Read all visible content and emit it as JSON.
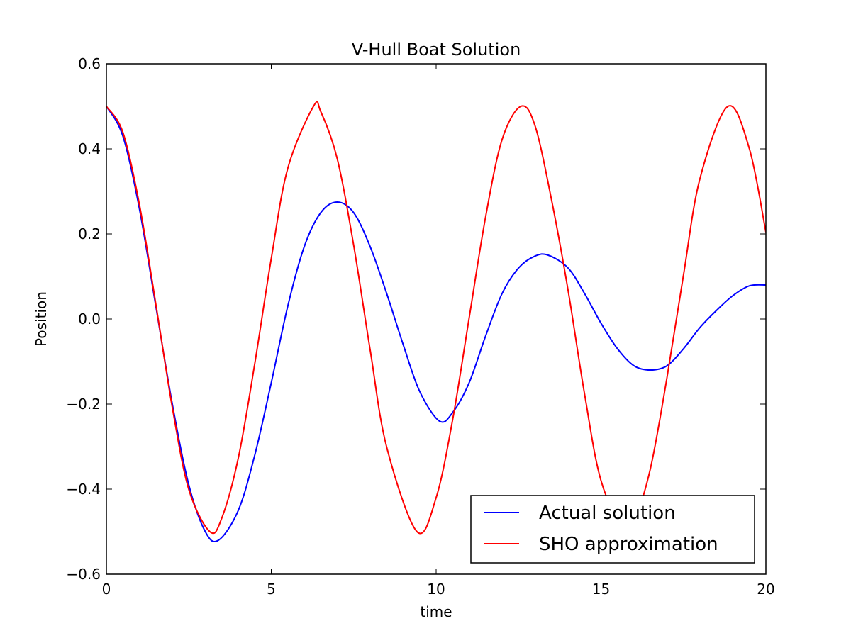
{
  "chart_data": {
    "type": "line",
    "title": "V-Hull Boat Solution",
    "xlabel": "time",
    "ylabel": "Position",
    "xlim": [
      0,
      20
    ],
    "ylim": [
      -0.6,
      0.6
    ],
    "xticks": [
      0,
      5,
      10,
      15,
      20
    ],
    "xtick_labels": [
      "0",
      "5",
      "10",
      "15",
      "20"
    ],
    "yticks": [
      -0.6,
      -0.4,
      -0.2,
      0.0,
      0.2,
      0.4,
      0.6
    ],
    "ytick_labels": [
      "−0.6",
      "−0.4",
      "−0.2",
      "0.0",
      "0.2",
      "0.4",
      "0.6"
    ],
    "grid": false,
    "legend_position": "lower-right",
    "series": [
      {
        "name": "Actual solution",
        "color": "#0000ff",
        "x": [
          0.0,
          0.5,
          1.0,
          1.5,
          2.0,
          2.5,
          3.0,
          3.4,
          4.0,
          4.5,
          5.0,
          5.5,
          6.0,
          6.5,
          7.0,
          7.5,
          8.0,
          8.5,
          9.0,
          9.5,
          10.1,
          10.5,
          11.0,
          11.5,
          12.0,
          12.5,
          13.0,
          13.4,
          14.0,
          14.5,
          15.0,
          15.5,
          16.0,
          16.5,
          17.0,
          17.5,
          18.0,
          18.5,
          19.0,
          19.5,
          20.0
        ],
        "y": [
          0.5,
          0.43,
          0.26,
          0.03,
          -0.2,
          -0.39,
          -0.5,
          -0.52,
          -0.45,
          -0.32,
          -0.15,
          0.03,
          0.17,
          0.25,
          0.275,
          0.25,
          0.17,
          0.06,
          -0.06,
          -0.17,
          -0.24,
          -0.22,
          -0.15,
          -0.04,
          0.06,
          0.12,
          0.148,
          0.15,
          0.12,
          0.06,
          -0.01,
          -0.07,
          -0.11,
          -0.12,
          -0.11,
          -0.07,
          -0.02,
          0.02,
          0.055,
          0.078,
          0.08
        ]
      },
      {
        "name": "SHO approximation",
        "color": "#ff0000",
        "function": "0.5*cos(t)",
        "x": [
          0.0,
          0.5,
          1.0,
          1.5,
          2.0,
          2.5,
          3.14,
          3.5,
          4.0,
          4.5,
          5.0,
          5.5,
          6.28,
          6.5,
          7.0,
          7.5,
          8.0,
          8.5,
          9.42,
          10.0,
          10.5,
          11.0,
          11.5,
          12.0,
          12.57,
          13.0,
          13.5,
          14.0,
          14.5,
          15.0,
          15.71,
          16.0,
          16.5,
          17.0,
          17.5,
          18.0,
          18.85,
          19.5,
          20.0
        ],
        "y": [
          0.5,
          0.439,
          0.27,
          0.035,
          -0.208,
          -0.401,
          -0.5,
          -0.468,
          -0.327,
          -0.105,
          0.142,
          0.354,
          0.5,
          0.488,
          0.377,
          0.173,
          -0.073,
          -0.301,
          -0.5,
          -0.42,
          -0.237,
          0.002,
          0.24,
          0.422,
          0.5,
          0.454,
          0.28,
          0.068,
          -0.176,
          -0.38,
          -0.5,
          -0.479,
          -0.351,
          -0.138,
          0.103,
          0.33,
          0.5,
          0.4,
          0.204
        ]
      }
    ]
  }
}
